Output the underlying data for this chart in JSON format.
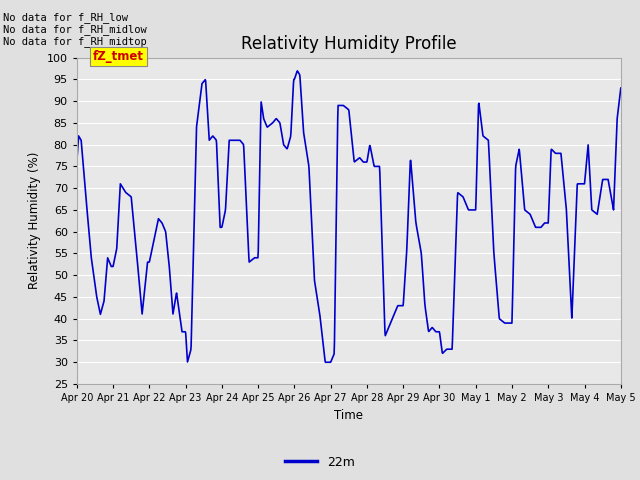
{
  "title": "Relativity Humidity Profile",
  "ylabel": "Relativity Humidity (%)",
  "xlabel": "Time",
  "ylim": [
    25,
    100
  ],
  "yticks": [
    25,
    30,
    35,
    40,
    45,
    50,
    55,
    60,
    65,
    70,
    75,
    80,
    85,
    90,
    95,
    100
  ],
  "line_color": "#0000cc",
  "line_width": 1.2,
  "bg_color": "#e0e0e0",
  "plot_bg_color": "#e8e8e8",
  "grid_color": "#ffffff",
  "annotations": [
    "No data for f_RH_low",
    "No data for f_RH_midlow",
    "No data for f_RH_midtop"
  ],
  "legend_label": "22m",
  "legend_color": "#0000cc",
  "tz_tmet_text": "fZ_tmet",
  "tz_tmet_color": "#cc0000",
  "tz_tmet_bg": "#ffff00",
  "x_tick_labels": [
    "Apr 20",
    "Apr 21",
    "Apr 22",
    "Apr 23",
    "Apr 24",
    "Apr 25",
    "Apr 26",
    "Apr 27",
    "Apr 28",
    "Apr 29",
    "Apr 30",
    "May 1",
    "May 2",
    "May 3",
    "May 4",
    "May 5"
  ],
  "humidity_waypoints": {
    "t": [
      0,
      0.05,
      0.12,
      0.25,
      0.4,
      0.55,
      0.65,
      0.75,
      0.85,
      0.95,
      1.0,
      1.1,
      1.2,
      1.35,
      1.5,
      1.65,
      1.8,
      1.95,
      2.0,
      2.1,
      2.25,
      2.35,
      2.45,
      2.55,
      2.65,
      2.75,
      2.9,
      3.0,
      3.05,
      3.15,
      3.3,
      3.45,
      3.55,
      3.65,
      3.75,
      3.85,
      3.95,
      4.0,
      4.1,
      4.2,
      4.35,
      4.5,
      4.6,
      4.75,
      4.9,
      5.0,
      5.08,
      5.15,
      5.25,
      5.4,
      5.5,
      5.6,
      5.7,
      5.8,
      5.9,
      5.98,
      6.0,
      6.08,
      6.15,
      6.25,
      6.4,
      6.55,
      6.7,
      6.85,
      7.0,
      7.1,
      7.2,
      7.35,
      7.5,
      7.65,
      7.8,
      7.9,
      8.0,
      8.08,
      8.2,
      8.35,
      8.5,
      8.6,
      8.7,
      8.85,
      8.95,
      9.0,
      9.1,
      9.2,
      9.35,
      9.5,
      9.6,
      9.7,
      9.8,
      9.9,
      10.0,
      10.08,
      10.2,
      10.35,
      10.5,
      10.65,
      10.8,
      10.9,
      11.0,
      11.08,
      11.2,
      11.35,
      11.5,
      11.65,
      11.8,
      11.9,
      12.0,
      12.1,
      12.2,
      12.35,
      12.5,
      12.65,
      12.8,
      12.9,
      13.0,
      13.08,
      13.2,
      13.35,
      13.5,
      13.65,
      13.8,
      13.9,
      14.0,
      14.1,
      14.2,
      14.35,
      14.5,
      14.65,
      14.8,
      14.9,
      15.0
    ],
    "rh": [
      76,
      82,
      81,
      68,
      54,
      45,
      41,
      44,
      54,
      52,
      52,
      56,
      71,
      69,
      68,
      55,
      41,
      53,
      53,
      57,
      63,
      62,
      60,
      52,
      41,
      46,
      37,
      37,
      30,
      33,
      84,
      94,
      95,
      81,
      82,
      81,
      61,
      61,
      65,
      81,
      81,
      81,
      80,
      53,
      54,
      54,
      90,
      86,
      84,
      85,
      86,
      85,
      80,
      79,
      82,
      95,
      95,
      97,
      96,
      83,
      75,
      49,
      41,
      30,
      30,
      32,
      89,
      89,
      88,
      76,
      77,
      76,
      76,
      80,
      75,
      75,
      36,
      38,
      40,
      43,
      43,
      43,
      56,
      77,
      62,
      55,
      43,
      37,
      38,
      37,
      37,
      32,
      33,
      33,
      69,
      68,
      65,
      65,
      65,
      90,
      82,
      81,
      55,
      40,
      39,
      39,
      39,
      75,
      79,
      65,
      64,
      61,
      61,
      62,
      62,
      79,
      78,
      78,
      65,
      40,
      71,
      71,
      71,
      80,
      65,
      64,
      72,
      72,
      65,
      86,
      93
    ]
  }
}
